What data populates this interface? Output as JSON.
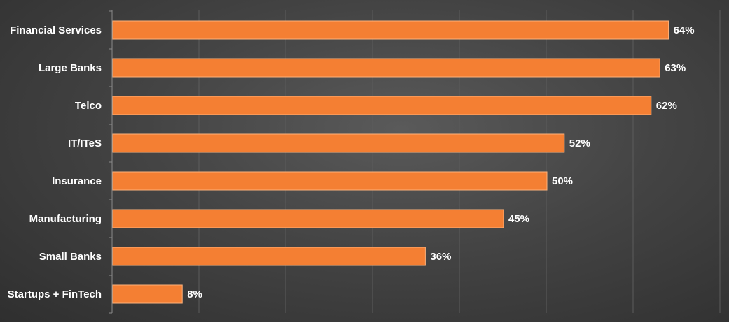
{
  "chart_data": {
    "type": "bar",
    "orientation": "horizontal",
    "categories": [
      "Financial Services",
      "Large Banks",
      "Telco",
      "IT/ITeS",
      "Insurance",
      "Manufacturing",
      "Small Banks",
      "Startups + FinTech"
    ],
    "values": [
      64,
      63,
      62,
      52,
      50,
      45,
      36,
      8
    ],
    "value_labels": [
      "64%",
      "63%",
      "62%",
      "52%",
      "50%",
      "45%",
      "36%",
      "8%"
    ],
    "title": "",
    "xlabel": "",
    "ylabel": "",
    "xlim": [
      0,
      70
    ],
    "grid": true,
    "legend": "none",
    "colors": {
      "bar": "#f47f33",
      "bar_edge": "#ffb27a",
      "text": "#ffffff",
      "grid": "#5c5c5c",
      "axis": "#8a8a8a"
    }
  }
}
